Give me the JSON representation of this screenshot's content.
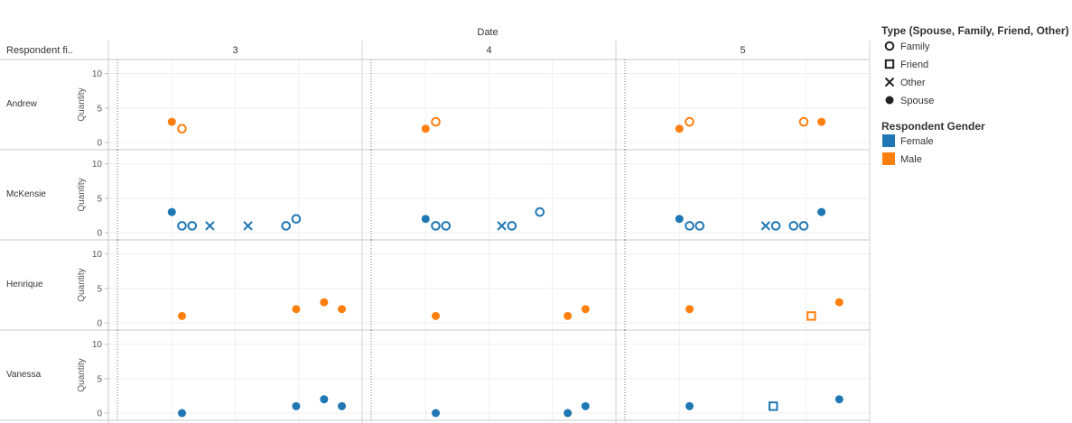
{
  "chart_data": {
    "type": "scatter",
    "column_header": "Date",
    "row_header": "Respondent fi..",
    "columns": [
      "3",
      "4",
      "5"
    ],
    "rows": [
      "Andrew",
      "McKensie",
      "Henrique",
      "Vanessa"
    ],
    "y_axis_label": "Quantity",
    "y_ticks": [
      "0",
      "5",
      "10"
    ],
    "ylim": [
      0,
      11
    ],
    "grid": true,
    "legend_placement": "right",
    "legend": {
      "type_title": "Type (Spouse, Family, Friend, Other)",
      "types": [
        {
          "key": "family",
          "label": "Family"
        },
        {
          "key": "friend",
          "label": "Friend"
        },
        {
          "key": "other",
          "label": "Other"
        },
        {
          "key": "spouse",
          "label": "Spouse"
        }
      ],
      "gender_title": "Respondent Gender",
      "genders": [
        {
          "key": "female",
          "label": "Female",
          "color": "#1f77b4"
        },
        {
          "key": "male",
          "label": "Male",
          "color": "#ff7f0e"
        }
      ]
    },
    "points": [
      {
        "row": 0,
        "col": 0,
        "x": 0.25,
        "y": 3,
        "type": "spouse",
        "gender": "male"
      },
      {
        "row": 0,
        "col": 0,
        "x": 0.29,
        "y": 2,
        "type": "family",
        "gender": "male"
      },
      {
        "row": 0,
        "col": 1,
        "x": 0.25,
        "y": 2,
        "type": "spouse",
        "gender": "male"
      },
      {
        "row": 0,
        "col": 1,
        "x": 0.29,
        "y": 3,
        "type": "family",
        "gender": "male"
      },
      {
        "row": 0,
        "col": 2,
        "x": 0.25,
        "y": 2,
        "type": "spouse",
        "gender": "male"
      },
      {
        "row": 0,
        "col": 2,
        "x": 0.29,
        "y": 3,
        "type": "family",
        "gender": "male"
      },
      {
        "row": 0,
        "col": 2,
        "x": 0.74,
        "y": 3,
        "type": "family",
        "gender": "male"
      },
      {
        "row": 0,
        "col": 2,
        "x": 0.81,
        "y": 3,
        "type": "spouse",
        "gender": "male"
      },
      {
        "row": 1,
        "col": 0,
        "x": 0.25,
        "y": 3,
        "type": "spouse",
        "gender": "female"
      },
      {
        "row": 1,
        "col": 0,
        "x": 0.29,
        "y": 1,
        "type": "family",
        "gender": "female"
      },
      {
        "row": 1,
        "col": 0,
        "x": 0.33,
        "y": 1,
        "type": "family",
        "gender": "female"
      },
      {
        "row": 1,
        "col": 0,
        "x": 0.4,
        "y": 1,
        "type": "other",
        "gender": "female"
      },
      {
        "row": 1,
        "col": 0,
        "x": 0.55,
        "y": 1,
        "type": "other",
        "gender": "female"
      },
      {
        "row": 1,
        "col": 0,
        "x": 0.7,
        "y": 1,
        "type": "family",
        "gender": "female"
      },
      {
        "row": 1,
        "col": 0,
        "x": 0.74,
        "y": 2,
        "type": "family",
        "gender": "female"
      },
      {
        "row": 1,
        "col": 1,
        "x": 0.25,
        "y": 2,
        "type": "spouse",
        "gender": "female"
      },
      {
        "row": 1,
        "col": 1,
        "x": 0.29,
        "y": 1,
        "type": "family",
        "gender": "female"
      },
      {
        "row": 1,
        "col": 1,
        "x": 0.33,
        "y": 1,
        "type": "family",
        "gender": "female"
      },
      {
        "row": 1,
        "col": 1,
        "x": 0.55,
        "y": 1,
        "type": "other",
        "gender": "female"
      },
      {
        "row": 1,
        "col": 1,
        "x": 0.59,
        "y": 1,
        "type": "family",
        "gender": "female"
      },
      {
        "row": 1,
        "col": 1,
        "x": 0.7,
        "y": 3,
        "type": "family",
        "gender": "female"
      },
      {
        "row": 1,
        "col": 2,
        "x": 0.25,
        "y": 2,
        "type": "spouse",
        "gender": "female"
      },
      {
        "row": 1,
        "col": 2,
        "x": 0.29,
        "y": 1,
        "type": "family",
        "gender": "female"
      },
      {
        "row": 1,
        "col": 2,
        "x": 0.33,
        "y": 1,
        "type": "family",
        "gender": "female"
      },
      {
        "row": 1,
        "col": 2,
        "x": 0.59,
        "y": 1,
        "type": "other",
        "gender": "female"
      },
      {
        "row": 1,
        "col": 2,
        "x": 0.63,
        "y": 1,
        "type": "family",
        "gender": "female"
      },
      {
        "row": 1,
        "col": 2,
        "x": 0.7,
        "y": 1,
        "type": "family",
        "gender": "female"
      },
      {
        "row": 1,
        "col": 2,
        "x": 0.74,
        "y": 1,
        "type": "family",
        "gender": "female"
      },
      {
        "row": 1,
        "col": 2,
        "x": 0.81,
        "y": 3,
        "type": "spouse",
        "gender": "female"
      },
      {
        "row": 2,
        "col": 0,
        "x": 0.29,
        "y": 1,
        "type": "spouse",
        "gender": "male"
      },
      {
        "row": 2,
        "col": 0,
        "x": 0.74,
        "y": 2,
        "type": "spouse",
        "gender": "male"
      },
      {
        "row": 2,
        "col": 0,
        "x": 0.85,
        "y": 3,
        "type": "spouse",
        "gender": "male"
      },
      {
        "row": 2,
        "col": 0,
        "x": 0.92,
        "y": 2,
        "type": "spouse",
        "gender": "male"
      },
      {
        "row": 2,
        "col": 1,
        "x": 0.29,
        "y": 1,
        "type": "spouse",
        "gender": "male"
      },
      {
        "row": 2,
        "col": 1,
        "x": 0.81,
        "y": 1,
        "type": "spouse",
        "gender": "male"
      },
      {
        "row": 2,
        "col": 1,
        "x": 0.88,
        "y": 2,
        "type": "spouse",
        "gender": "male"
      },
      {
        "row": 2,
        "col": 2,
        "x": 0.29,
        "y": 2,
        "type": "spouse",
        "gender": "male"
      },
      {
        "row": 2,
        "col": 2,
        "x": 0.77,
        "y": 1,
        "type": "friend",
        "gender": "male"
      },
      {
        "row": 2,
        "col": 2,
        "x": 0.88,
        "y": 3,
        "type": "spouse",
        "gender": "male"
      },
      {
        "row": 3,
        "col": 0,
        "x": 0.29,
        "y": 0,
        "type": "spouse",
        "gender": "female"
      },
      {
        "row": 3,
        "col": 0,
        "x": 0.74,
        "y": 1,
        "type": "spouse",
        "gender": "female"
      },
      {
        "row": 3,
        "col": 0,
        "x": 0.85,
        "y": 2,
        "type": "spouse",
        "gender": "female"
      },
      {
        "row": 3,
        "col": 0,
        "x": 0.92,
        "y": 1,
        "type": "spouse",
        "gender": "female"
      },
      {
        "row": 3,
        "col": 1,
        "x": 0.29,
        "y": 0,
        "type": "spouse",
        "gender": "female"
      },
      {
        "row": 3,
        "col": 1,
        "x": 0.81,
        "y": 0,
        "type": "spouse",
        "gender": "female"
      },
      {
        "row": 3,
        "col": 1,
        "x": 0.88,
        "y": 1,
        "type": "spouse",
        "gender": "female"
      },
      {
        "row": 3,
        "col": 2,
        "x": 0.29,
        "y": 1,
        "type": "spouse",
        "gender": "female"
      },
      {
        "row": 3,
        "col": 2,
        "x": 0.62,
        "y": 1,
        "type": "friend",
        "gender": "female"
      },
      {
        "row": 3,
        "col": 2,
        "x": 0.88,
        "y": 2,
        "type": "spouse",
        "gender": "female"
      }
    ]
  }
}
